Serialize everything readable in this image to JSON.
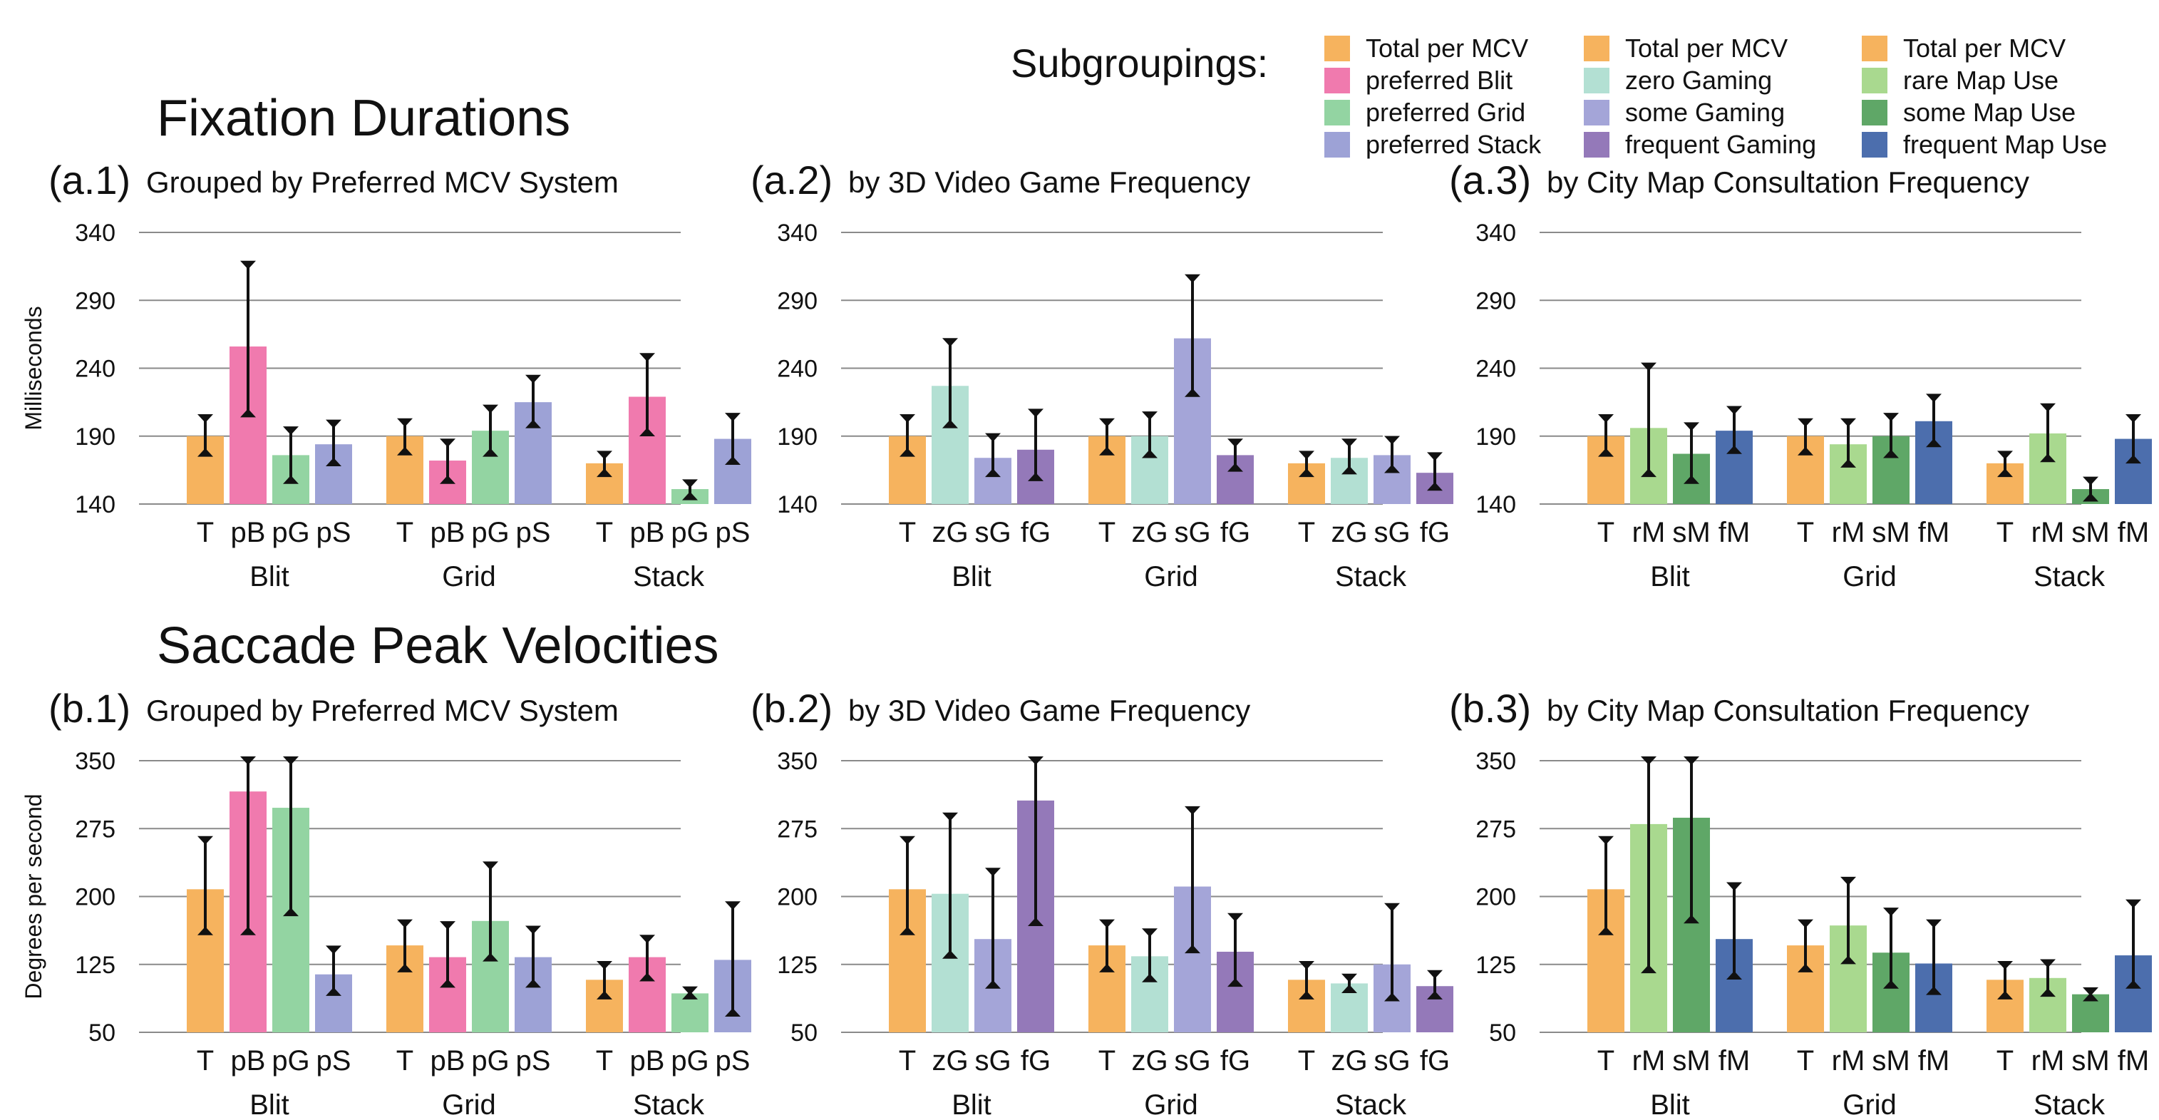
{
  "legend": {
    "title": "Subgroupings:",
    "columns": [
      [
        {
          "label": "Total per MCV",
          "color": "#F6B35E"
        },
        {
          "label": "preferred Blit",
          "color": "#F07AAE"
        },
        {
          "label": "preferred Grid",
          "color": "#93D4A2"
        },
        {
          "label": "preferred Stack",
          "color": "#9DA2D6"
        }
      ],
      [
        {
          "label": "Total per MCV",
          "color": "#F6B35E"
        },
        {
          "label": "zero Gaming",
          "color": "#B3E0D3"
        },
        {
          "label": "some Gaming",
          "color": "#A4A5D8"
        },
        {
          "label": "frequent Gaming",
          "color": "#9479B9"
        }
      ],
      [
        {
          "label": "Total per MCV",
          "color": "#F6B35E"
        },
        {
          "label": "rare Map Use",
          "color": "#A9D98F"
        },
        {
          "label": "some Map Use",
          "color": "#5FA767"
        },
        {
          "label": "frequent Map Use",
          "color": "#4C6EAD"
        }
      ]
    ]
  },
  "sections": {
    "fixation": {
      "title": "Fixation Durations",
      "ylabel": "Milliseconds"
    },
    "saccade": {
      "title": "Saccade Peak Velocities",
      "ylabel": "Degrees per second"
    }
  },
  "chart_data": [
    {
      "id": "a1",
      "tag": "(a.1)",
      "type": "bar",
      "title": "Grouped by Preferred MCV System",
      "ylabel": "Milliseconds",
      "ylim": [
        140,
        340
      ],
      "yticks": [
        140,
        190,
        240,
        290,
        340
      ],
      "categories": [
        "Blit",
        "Grid",
        "Stack"
      ],
      "series": [
        {
          "name": "T",
          "color": "#F6B35E",
          "values": [
            190,
            190,
            170
          ],
          "errors": [
            [
              178,
              203
            ],
            [
              179,
              200
            ],
            [
              163,
              176
            ]
          ]
        },
        {
          "name": "pB",
          "color": "#F07AAE",
          "values": [
            256,
            172,
            219
          ],
          "errors": [
            [
              207,
              316
            ],
            [
              158,
              185
            ],
            [
              193,
              248
            ]
          ]
        },
        {
          "name": "pG",
          "color": "#93D4A2",
          "values": [
            176,
            194,
            151
          ],
          "errors": [
            [
              158,
              194
            ],
            [
              178,
              210
            ],
            [
              146,
              155
            ]
          ]
        },
        {
          "name": "pS",
          "color": "#9DA2D6",
          "values": [
            184,
            215,
            188
          ],
          "errors": [
            [
              171,
              199
            ],
            [
              199,
              232
            ],
            [
              172,
              204
            ]
          ]
        }
      ]
    },
    {
      "id": "a2",
      "tag": "(a.2)",
      "type": "bar",
      "title": "by 3D Video Game Frequency",
      "ylim": [
        140,
        340
      ],
      "yticks": [
        140,
        190,
        240,
        290,
        340
      ],
      "categories": [
        "Blit",
        "Grid",
        "Stack"
      ],
      "series": [
        {
          "name": "T",
          "color": "#F6B35E",
          "values": [
            190,
            190,
            170
          ],
          "errors": [
            [
              178,
              203
            ],
            [
              179,
              200
            ],
            [
              163,
              176
            ]
          ]
        },
        {
          "name": "zG",
          "color": "#B3E0D3",
          "values": [
            227,
            190,
            174
          ],
          "errors": [
            [
              199,
              259
            ],
            [
              177,
              205
            ],
            [
              165,
              185
            ]
          ]
        },
        {
          "name": "sG",
          "color": "#A4A5D8",
          "values": [
            174,
            262,
            176
          ],
          "errors": [
            [
              163,
              189
            ],
            [
              222,
              306
            ],
            [
              166,
              187
            ]
          ]
        },
        {
          "name": "fG",
          "color": "#9479B9",
          "values": [
            180,
            176,
            163
          ],
          "errors": [
            [
              160,
              207
            ],
            [
              167,
              185
            ],
            [
              153,
              175
            ]
          ]
        }
      ]
    },
    {
      "id": "a3",
      "tag": "(a.3)",
      "type": "bar",
      "title": "by City Map Consultation Frequency",
      "ylim": [
        140,
        340
      ],
      "yticks": [
        140,
        190,
        240,
        290,
        340
      ],
      "categories": [
        "Blit",
        "Grid",
        "Stack"
      ],
      "series": [
        {
          "name": "T",
          "color": "#F6B35E",
          "values": [
            190,
            190,
            170
          ],
          "errors": [
            [
              178,
              203
            ],
            [
              179,
              200
            ],
            [
              163,
              176
            ]
          ]
        },
        {
          "name": "rM",
          "color": "#A9D98F",
          "values": [
            196,
            184,
            192
          ],
          "errors": [
            [
              163,
              241
            ],
            [
              170,
              200
            ],
            [
              174,
              211
            ]
          ]
        },
        {
          "name": "sM",
          "color": "#5FA767",
          "values": [
            177,
            190,
            151
          ],
          "errors": [
            [
              158,
              197
            ],
            [
              177,
              204
            ],
            [
              145,
              157
            ]
          ]
        },
        {
          "name": "fM",
          "color": "#4C6EAD",
          "values": [
            194,
            201,
            188
          ],
          "errors": [
            [
              180,
              209
            ],
            [
              185,
              218
            ],
            [
              173,
              203
            ]
          ]
        }
      ]
    },
    {
      "id": "b1",
      "tag": "(b.1)",
      "type": "bar",
      "title": "Grouped by Preferred MCV System",
      "ylabel": "Degrees per second",
      "ylim": [
        50,
        350
      ],
      "yticks": [
        50,
        125,
        200,
        275,
        350
      ],
      "categories": [
        "Blit",
        "Grid",
        "Stack"
      ],
      "series": [
        {
          "name": "T",
          "color": "#F6B35E",
          "values": [
            208,
            146,
            108
          ],
          "errors": [
            [
              162,
              262
            ],
            [
              121,
              170
            ],
            [
              91,
              124
            ]
          ]
        },
        {
          "name": "pB",
          "color": "#F07AAE",
          "values": [
            316,
            133,
            133
          ],
          "errors": [
            [
              162,
              350
            ],
            [
              104,
              168
            ],
            [
              111,
              153
            ]
          ]
        },
        {
          "name": "pG",
          "color": "#93D4A2",
          "values": [
            298,
            173,
            93
          ],
          "errors": [
            [
              183,
              350
            ],
            [
              133,
              234
            ],
            [
              91,
              96
            ]
          ]
        },
        {
          "name": "pS",
          "color": "#9DA2D6",
          "values": [
            114,
            133,
            130
          ],
          "errors": [
            [
              95,
              141
            ],
            [
              104,
              163
            ],
            [
              72,
              190
            ]
          ]
        }
      ]
    },
    {
      "id": "b2",
      "tag": "(b.2)",
      "type": "bar",
      "title": "by 3D Video Game Frequency",
      "ylim": [
        50,
        350
      ],
      "yticks": [
        50,
        125,
        200,
        275,
        350
      ],
      "categories": [
        "Blit",
        "Grid",
        "Stack"
      ],
      "series": [
        {
          "name": "T",
          "color": "#F6B35E",
          "values": [
            208,
            146,
            108
          ],
          "errors": [
            [
              162,
              262
            ],
            [
              121,
              170
            ],
            [
              91,
              124
            ]
          ]
        },
        {
          "name": "zG",
          "color": "#B3E0D3",
          "values": [
            203,
            134,
            104
          ],
          "errors": [
            [
              136,
              288
            ],
            [
              110,
              160
            ],
            [
              98,
              110
            ]
          ]
        },
        {
          "name": "sG",
          "color": "#A4A5D8",
          "values": [
            153,
            211,
            125
          ],
          "errors": [
            [
              103,
              227
            ],
            [
              142,
              295
            ],
            [
              89,
              188
            ]
          ]
        },
        {
          "name": "fG",
          "color": "#9479B9",
          "values": [
            306,
            139,
            101
          ],
          "errors": [
            [
              172,
              350
            ],
            [
              105,
              177
            ],
            [
              91,
              114
            ]
          ]
        }
      ]
    },
    {
      "id": "b3",
      "tag": "(b.3)",
      "type": "bar",
      "title": "by City Map Consultation Frequency",
      "ylim": [
        50,
        350
      ],
      "yticks": [
        50,
        125,
        200,
        275,
        350
      ],
      "categories": [
        "Blit",
        "Grid",
        "Stack"
      ],
      "series": [
        {
          "name": "T",
          "color": "#F6B35E",
          "values": [
            208,
            146,
            108
          ],
          "errors": [
            [
              162,
              262
            ],
            [
              121,
              170
            ],
            [
              91,
              124
            ]
          ]
        },
        {
          "name": "rM",
          "color": "#A9D98F",
          "values": [
            280,
            168,
            110
          ],
          "errors": [
            [
              120,
              350
            ],
            [
              130,
              217
            ],
            [
              94,
              126
            ]
          ]
        },
        {
          "name": "sM",
          "color": "#5FA767",
          "values": [
            287,
            138,
            92
          ],
          "errors": [
            [
              175,
              350
            ],
            [
              103,
              183
            ],
            [
              89,
              95
            ]
          ]
        },
        {
          "name": "fM",
          "color": "#4C6EAD",
          "values": [
            153,
            126,
            135
          ],
          "errors": [
            [
              113,
              211
            ],
            [
              96,
              170
            ],
            [
              103,
              192
            ]
          ]
        }
      ]
    }
  ]
}
